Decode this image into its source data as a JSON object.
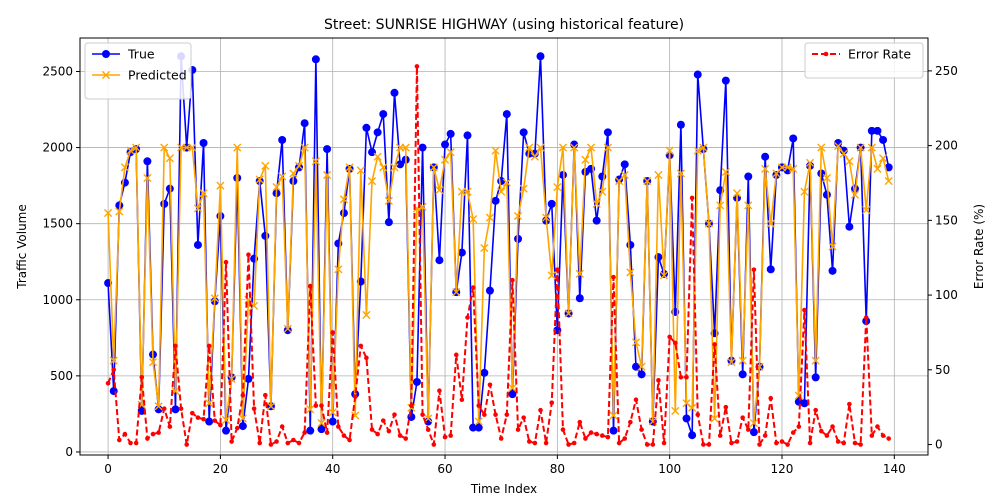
{
  "chart_data": {
    "type": "line",
    "title": "Street: SUNRISE HIGHWAY (using historical feature)",
    "xlabel": "Time Index",
    "ylabel": "Traffic Volume",
    "ylabel_right": "Error Rate (%)",
    "xlim": [
      -5,
      146
    ],
    "ylim": [
      -20,
      2720
    ],
    "ylim_right": [
      -7,
      272
    ],
    "x_ticks": [
      0,
      20,
      40,
      60,
      80,
      100,
      120,
      140
    ],
    "y_ticks": [
      0,
      500,
      1000,
      1500,
      2000,
      2500
    ],
    "y_ticks_right": [
      0,
      50,
      100,
      150,
      200,
      250
    ],
    "grid": true,
    "legend_left": "upper left",
    "legend_right": "upper right",
    "colors": {
      "true": "#0000ff",
      "predicted": "#ffa500",
      "error": "#ff0000"
    },
    "x": [
      0,
      1,
      2,
      3,
      4,
      5,
      6,
      7,
      8,
      9,
      10,
      11,
      12,
      13,
      14,
      15,
      16,
      17,
      18,
      19,
      20,
      21,
      22,
      23,
      24,
      25,
      26,
      27,
      28,
      29,
      30,
      31,
      32,
      33,
      34,
      35,
      36,
      37,
      38,
      39,
      40,
      41,
      42,
      43,
      44,
      45,
      46,
      47,
      48,
      49,
      50,
      51,
      52,
      53,
      54,
      55,
      56,
      57,
      58,
      59,
      60,
      61,
      62,
      63,
      64,
      65,
      66,
      67,
      68,
      69,
      70,
      71,
      72,
      73,
      74,
      75,
      76,
      77,
      78,
      79,
      80,
      81,
      82,
      83,
      84,
      85,
      86,
      87,
      88,
      89,
      90,
      91,
      92,
      93,
      94,
      95,
      96,
      97,
      98,
      99,
      100,
      101,
      102,
      103,
      104,
      105,
      106,
      107,
      108,
      109,
      110,
      111,
      112,
      113,
      114,
      115,
      116,
      117,
      118,
      119,
      120,
      121,
      122,
      123,
      124,
      125,
      126,
      127,
      128,
      129,
      130,
      131,
      132,
      133,
      134,
      135,
      136,
      137,
      138,
      139
    ],
    "series": [
      {
        "name": "True",
        "axis": "left",
        "style": "solid",
        "marker": "circle",
        "color": "#0000ff",
        "values": [
          1110,
          400,
          1620,
          1770,
          1970,
          1990,
          270,
          1910,
          640,
          280,
          1630,
          1730,
          280,
          2600,
          2000,
          2510,
          1360,
          2030,
          200,
          990,
          1550,
          140,
          490,
          1800,
          170,
          480,
          1270,
          1780,
          1420,
          300,
          1700,
          2050,
          800,
          1780,
          1870,
          2160,
          140,
          2580,
          150,
          1990,
          200,
          1370,
          1570,
          1860,
          380,
          1120,
          2130,
          1970,
          2100,
          2220,
          1510,
          2360,
          1890,
          1920,
          230,
          460,
          2000,
          200,
          1870,
          1260,
          2020,
          2090,
          1050,
          1310,
          2080,
          160,
          160,
          520,
          1060,
          1650,
          1780,
          2220,
          380,
          1400,
          2100,
          1960,
          1960,
          2600,
          1520,
          1630,
          800,
          1820,
          910,
          2020,
          1010,
          1840,
          1860,
          1520,
          1810,
          2100,
          140,
          1790,
          1890,
          1360,
          560,
          510,
          1780,
          200,
          1280,
          1170,
          1950,
          920,
          2150,
          220,
          110,
          2480,
          1990,
          1500,
          780,
          1720,
          2440,
          600,
          1670,
          510,
          1810,
          130,
          560,
          1940,
          1200,
          1820,
          1870,
          1850,
          2060,
          330,
          320,
          1880,
          490,
          1830,
          1690,
          1190,
          2030,
          1980,
          1480,
          1730,
          2000,
          860,
          2110,
          2110,
          2050,
          1870
        ]
      },
      {
        "name": "Predicted",
        "axis": "left",
        "style": "solid",
        "marker": "x",
        "color": "#ffa500",
        "values": [
          1570,
          600,
          1580,
          1870,
          1980,
          2000,
          310,
          1800,
          590,
          300,
          2000,
          1930,
          400,
          2000,
          2000,
          2000,
          1600,
          1700,
          320,
          1010,
          1750,
          210,
          480,
          2000,
          220,
          1000,
          960,
          1790,
          1880,
          300,
          1740,
          1810,
          810,
          1830,
          1880,
          2000,
          280,
          1910,
          190,
          1820,
          260,
          1200,
          1660,
          1870,
          240,
          1850,
          900,
          1780,
          1940,
          1870,
          1650,
          1870,
          2000,
          2000,
          290,
          1600,
          1610,
          220,
          1870,
          1720,
          1920,
          1970,
          1050,
          1710,
          1710,
          1530,
          200,
          1340,
          1540,
          1980,
          1710,
          1770,
          420,
          1550,
          1730,
          2000,
          1940,
          2000,
          1540,
          1160,
          1740,
          2000,
          910,
          2000,
          1170,
          1920,
          2000,
          1630,
          1710,
          2000,
          240,
          1780,
          1820,
          1180,
          720,
          560,
          1780,
          200,
          1820,
          1160,
          1980,
          270,
          1830,
          320,
          290,
          1980,
          2000,
          1500,
          220,
          1620,
          1840,
          590,
          1700,
          600,
          1620,
          190,
          560,
          1860,
          1500,
          1830,
          1870,
          1870,
          1860,
          370,
          1710,
          1900,
          600,
          2000,
          1800,
          1350,
          2010,
          1960,
          1910,
          1690,
          2000,
          1590,
          2000,
          1860,
          1930,
          1780
        ]
      },
      {
        "name": "Error Rate",
        "axis": "right",
        "style": "dashed",
        "marker": "dot",
        "color": "#ff0000",
        "values": [
          41,
          50,
          3,
          7,
          1,
          1,
          45,
          4,
          7,
          8,
          24,
          12,
          66,
          24,
          0,
          21,
          18,
          17,
          66,
          16,
          13,
          122,
          2,
          11,
          33,
          127,
          24,
          1,
          33,
          0,
          2,
          12,
          1,
          3,
          1,
          8,
          106,
          26,
          26,
          8,
          75,
          12,
          6,
          3,
          32,
          66,
          58,
          10,
          7,
          16,
          9,
          20,
          6,
          4,
          26,
          253,
          20,
          10,
          0,
          36,
          5,
          6,
          60,
          30,
          85,
          105,
          26,
          20,
          40,
          20,
          4,
          20,
          110,
          10,
          18,
          2,
          1,
          23,
          1,
          28,
          117,
          10,
          0,
          1,
          15,
          4,
          8,
          7,
          6,
          5,
          112,
          1,
          4,
          15,
          30,
          10,
          0,
          0,
          43,
          1,
          72,
          68,
          45,
          45,
          165,
          20,
          0,
          0,
          67,
          6,
          25,
          1,
          2,
          18,
          10,
          117,
          0,
          6,
          31,
          1,
          2,
          0,
          8,
          12,
          90,
          1,
          23,
          9,
          6,
          12,
          2,
          1,
          27,
          1,
          0,
          85,
          6,
          12,
          6,
          4
        ]
      }
    ]
  }
}
